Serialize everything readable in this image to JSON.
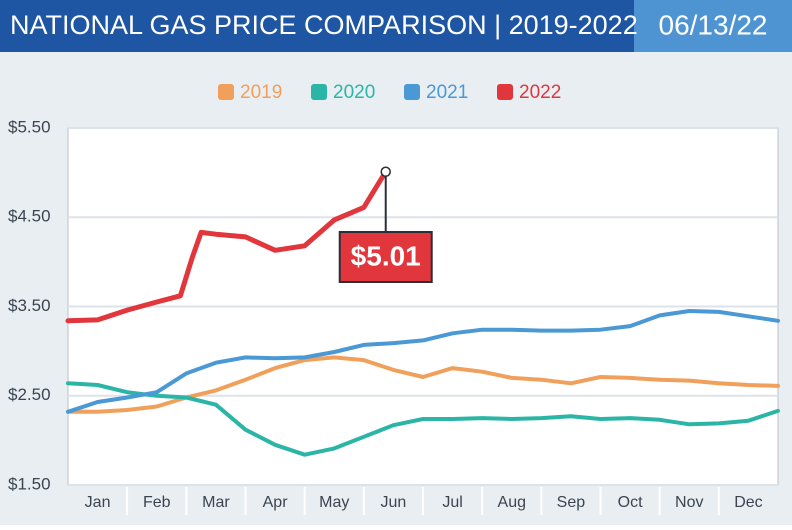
{
  "chart_data": {
    "type": "line",
    "title": "NATIONAL GAS PRICE COMPARISON | 2019-2022",
    "date": "06/13/22",
    "categories": [
      "Jan",
      "Feb",
      "Mar",
      "Apr",
      "May",
      "Jun",
      "Jul",
      "Aug",
      "Sep",
      "Oct",
      "Nov",
      "Dec"
    ],
    "xlim": [
      0,
      12
    ],
    "ylim": [
      1.5,
      5.5
    ],
    "yticks": [
      {
        "value": 1.5,
        "label": "$1.50"
      },
      {
        "value": 2.5,
        "label": "$2.50"
      },
      {
        "value": 3.5,
        "label": "$3.50"
      },
      {
        "value": 4.5,
        "label": "$4.50"
      },
      {
        "value": 5.5,
        "label": "$5.50"
      }
    ],
    "grid": true,
    "series": [
      {
        "name": "2019",
        "color": "#f0a05a",
        "x": [
          0,
          0.5,
          1,
          1.5,
          2,
          2.5,
          3,
          3.5,
          4,
          4.5,
          5,
          5.5,
          6,
          6.5,
          7,
          7.5,
          8,
          8.5,
          9,
          9.5,
          10,
          10.5,
          11,
          11.5,
          12
        ],
        "values": [
          2.32,
          2.32,
          2.34,
          2.38,
          2.48,
          2.56,
          2.68,
          2.81,
          2.9,
          2.93,
          2.9,
          2.79,
          2.71,
          2.81,
          2.77,
          2.7,
          2.68,
          2.64,
          2.71,
          2.7,
          2.68,
          2.67,
          2.64,
          2.62,
          2.61
        ]
      },
      {
        "name": "2020",
        "color": "#2bb5a6",
        "x": [
          0,
          0.5,
          1,
          1.5,
          2,
          2.5,
          3,
          3.5,
          4,
          4.5,
          5,
          5.5,
          6,
          6.5,
          7,
          7.5,
          8,
          8.5,
          9,
          9.5,
          10,
          10.5,
          11,
          11.5,
          12
        ],
        "values": [
          2.64,
          2.62,
          2.54,
          2.5,
          2.48,
          2.4,
          2.12,
          1.95,
          1.84,
          1.91,
          2.04,
          2.17,
          2.24,
          2.24,
          2.25,
          2.24,
          2.25,
          2.27,
          2.24,
          2.25,
          2.23,
          2.18,
          2.19,
          2.22,
          2.33
        ]
      },
      {
        "name": "2021",
        "color": "#4a98d4",
        "x": [
          0,
          0.5,
          1,
          1.5,
          2,
          2.5,
          3,
          3.5,
          4,
          4.5,
          5,
          5.5,
          6,
          6.5,
          7,
          7.5,
          8,
          8.5,
          9,
          9.5,
          10,
          10.5,
          11,
          11.5,
          12
        ],
        "values": [
          2.32,
          2.43,
          2.48,
          2.54,
          2.75,
          2.87,
          2.93,
          2.92,
          2.93,
          2.99,
          3.07,
          3.09,
          3.12,
          3.2,
          3.24,
          3.24,
          3.23,
          3.23,
          3.24,
          3.28,
          3.4,
          3.45,
          3.44,
          3.39,
          3.34
        ]
      },
      {
        "name": "2022",
        "color": "#e0363c",
        "x": [
          0,
          0.5,
          1,
          1.5,
          1.9,
          2.1,
          2.25,
          2.5,
          3,
          3.5,
          4,
          4.5,
          5,
          5.37
        ],
        "values": [
          3.34,
          3.35,
          3.46,
          3.55,
          3.62,
          4.05,
          4.33,
          4.31,
          4.28,
          4.13,
          4.18,
          4.47,
          4.61,
          5.01
        ],
        "value_labels": [
          null,
          null,
          null,
          null,
          null,
          null,
          null,
          null,
          null,
          null,
          null,
          null,
          null,
          "$5.01"
        ]
      }
    ]
  }
}
